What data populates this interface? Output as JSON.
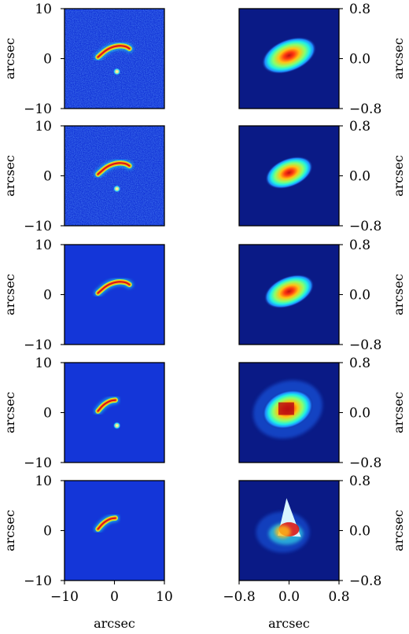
{
  "figure": {
    "left_column": {
      "ylabel": "arcsec",
      "xlabel": "arcsec",
      "y_ticks": [
        "10",
        "0",
        "−10"
      ],
      "x_ticks": [
        "−10",
        "0",
        "10"
      ]
    },
    "right_column": {
      "ylabel": "arcsec",
      "xlabel": "arcsec",
      "y_ticks": [
        "0.8",
        "0.0",
        "−0.8"
      ],
      "x_ticks": [
        "−0.8",
        "0.0",
        "0.8"
      ]
    },
    "colormap": "jet",
    "background_color": "#1436d8",
    "dark_background_color": "#0a1a86"
  },
  "chart_data": [
    {
      "type": "heatmap",
      "row": 1,
      "column": "left",
      "xlabel": "",
      "ylabel": "arcsec",
      "xlim": [
        -10,
        10
      ],
      "ylim": [
        -10,
        10
      ],
      "content": "noisy lensed arc with counter-image",
      "noise": true,
      "arc": {
        "x": [
          -3.3,
          -1.5,
          0.5,
          2.2,
          3.0
        ],
        "y": [
          0.3,
          1.9,
          2.6,
          2.5,
          2.0
        ]
      },
      "counter_image": {
        "x": 0.5,
        "y": -2.6
      }
    },
    {
      "type": "heatmap",
      "row": 1,
      "column": "right",
      "xlabel": "",
      "ylabel": "arcsec",
      "xlim": [
        -0.8,
        0.8
      ],
      "ylim": [
        -0.8,
        0.8
      ],
      "content": "smooth elliptical source",
      "center": [
        0.0,
        0.05
      ],
      "axes": [
        0.46,
        0.26
      ],
      "angle_deg": 22
    },
    {
      "type": "heatmap",
      "row": 2,
      "column": "left",
      "xlabel": "",
      "ylabel": "arcsec",
      "xlim": [
        -10,
        10
      ],
      "ylim": [
        -10,
        10
      ],
      "content": "noisy lensed arc with counter-image",
      "noise": true,
      "arc": {
        "x": [
          -3.3,
          -1.5,
          0.5,
          2.2,
          3.0
        ],
        "y": [
          0.3,
          1.9,
          2.6,
          2.5,
          2.0
        ]
      },
      "counter_image": {
        "x": 0.5,
        "y": -2.6
      }
    },
    {
      "type": "heatmap",
      "row": 2,
      "column": "right",
      "xlabel": "",
      "ylabel": "arcsec",
      "xlim": [
        -0.8,
        0.8
      ],
      "ylim": [
        -0.8,
        0.8
      ],
      "content": "smooth elliptical source",
      "center": [
        0.0,
        0.05
      ],
      "axes": [
        0.4,
        0.23
      ],
      "angle_deg": 22
    },
    {
      "type": "heatmap",
      "row": 3,
      "column": "left",
      "xlabel": "",
      "ylabel": "arcsec",
      "xlim": [
        -10,
        10
      ],
      "ylim": [
        -10,
        10
      ],
      "content": "noise-free lensed arc",
      "noise": false,
      "arc": {
        "x": [
          -3.3,
          -1.5,
          0.5,
          2.2,
          3.0
        ],
        "y": [
          0.3,
          1.9,
          2.6,
          2.5,
          2.0
        ]
      }
    },
    {
      "type": "heatmap",
      "row": 3,
      "column": "right",
      "xlabel": "",
      "ylabel": "arcsec",
      "xlim": [
        -0.8,
        0.8
      ],
      "ylim": [
        -0.8,
        0.8
      ],
      "content": "smooth elliptical source",
      "center": [
        0.0,
        0.05
      ],
      "axes": [
        0.42,
        0.24
      ],
      "angle_deg": 22
    },
    {
      "type": "heatmap",
      "row": 4,
      "column": "left",
      "xlabel": "",
      "ylabel": "arcsec",
      "xlim": [
        -10,
        10
      ],
      "ylim": [
        -10,
        10
      ],
      "content": "short lensed arc with counter-image",
      "noise": false,
      "arc": {
        "x": [
          -3.3,
          -2.2,
          -0.8,
          0.2
        ],
        "y": [
          0.3,
          1.6,
          2.4,
          2.5
        ]
      },
      "counter_image": {
        "x": 0.5,
        "y": -2.6
      }
    },
    {
      "type": "heatmap",
      "row": 4,
      "column": "right",
      "xlabel": "",
      "ylabel": "arcsec",
      "xlim": [
        -0.8,
        0.8
      ],
      "ylim": [
        -0.8,
        0.8
      ],
      "content": "irregular pixelated source reconstruction",
      "center": [
        -0.02,
        0.05
      ],
      "axes": [
        0.42,
        0.3
      ],
      "angle_deg": 20
    },
    {
      "type": "heatmap",
      "row": 5,
      "column": "left",
      "xlabel": "arcsec",
      "ylabel": "arcsec",
      "xlim": [
        -10,
        10
      ],
      "ylim": [
        -10,
        10
      ],
      "content": "short lensed arc",
      "noise": false,
      "arc": {
        "x": [
          -3.3,
          -2.2,
          -0.8,
          0.2
        ],
        "y": [
          0.3,
          1.6,
          2.4,
          2.5
        ]
      }
    },
    {
      "type": "heatmap",
      "row": 5,
      "column": "right",
      "xlabel": "arcsec",
      "ylabel": "arcsec",
      "xlim": [
        -0.8,
        0.8
      ],
      "ylim": [
        -0.8,
        0.8
      ],
      "content": "triangular source-plane reconstruction",
      "center": [
        0.0,
        0.0
      ],
      "axes": [
        0.25,
        0.2
      ],
      "angle_deg": 0
    }
  ]
}
